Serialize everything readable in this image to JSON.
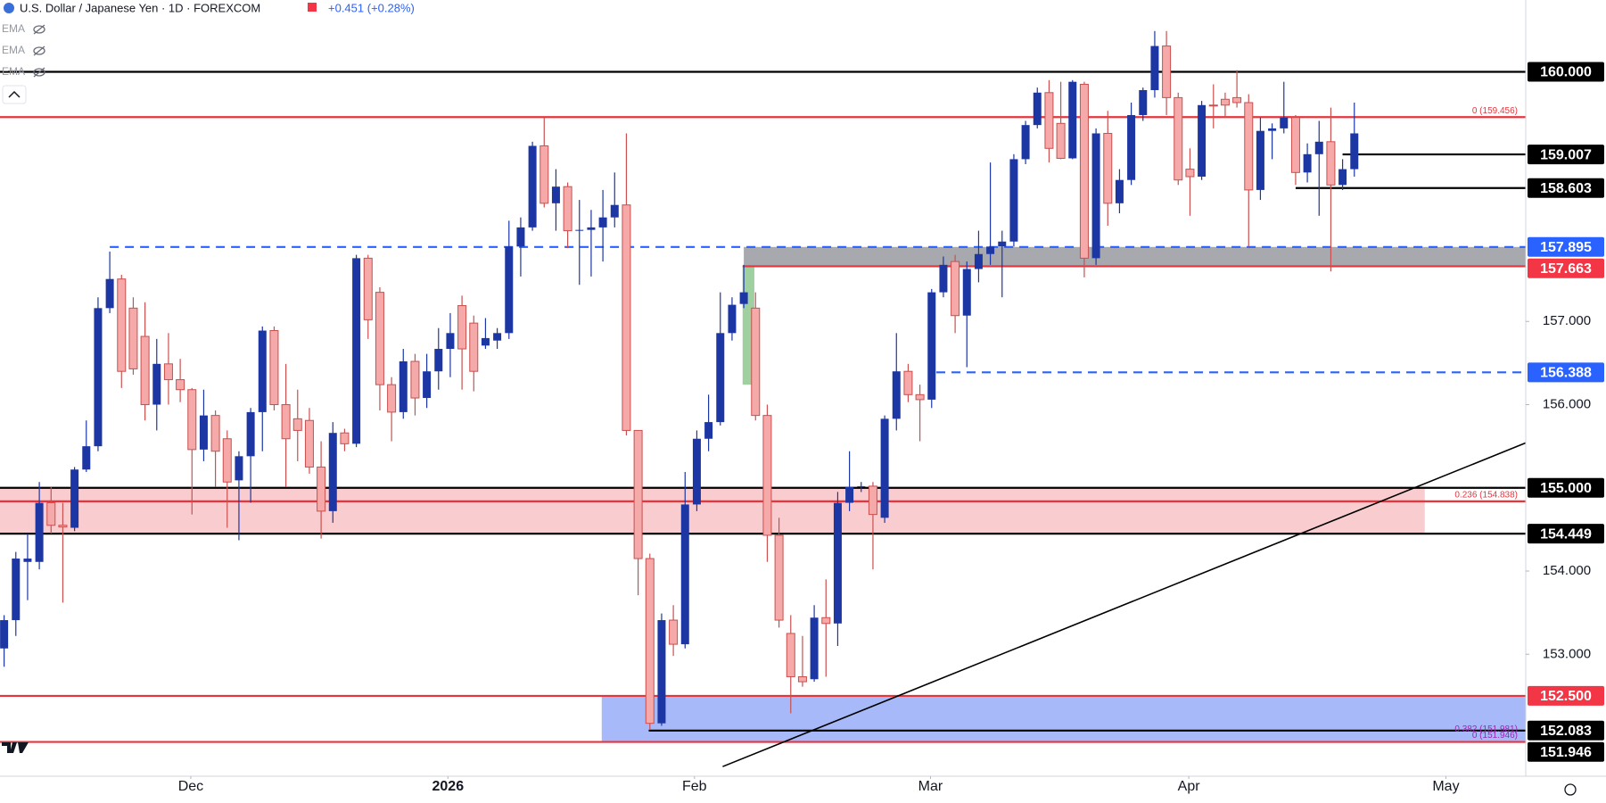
{
  "chart_data": {
    "type": "candlestick",
    "title": "U.S. Dollar / Japanese Yen · 1D · FOREXCOM",
    "change": "+0.451 (+0.28%)",
    "indicators": [
      "EMA",
      "EMA",
      "EMA"
    ],
    "up_color": "#1c36a4",
    "down_color": "#f6a9a9",
    "down_border": "#c9504f",
    "xlim": [
      -0.35,
      129.6
    ],
    "ylim": [
      151.534,
      160.863
    ],
    "xticks": [
      {
        "value": 15.9,
        "label": "Dec"
      },
      {
        "value": 37.8,
        "label": "2026"
      },
      {
        "value": 58.8,
        "label": "Feb"
      },
      {
        "value": 78.9,
        "label": "Mar"
      },
      {
        "value": 100.9,
        "label": "Apr"
      },
      {
        "value": 122.8,
        "label": "May"
      }
    ],
    "yticks": [
      {
        "value": 153,
        "label": "153.000"
      },
      {
        "value": 154,
        "label": "154.000"
      },
      {
        "value": 156,
        "label": "156.000"
      },
      {
        "value": 157,
        "label": "157.000"
      }
    ],
    "open": [
      153.07,
      153.41,
      154.11,
      154.11,
      154.82,
      154.55,
      154.52,
      155.22,
      155.5,
      157.16,
      157.51,
      157.16,
      156.82,
      156.0,
      156.49,
      156.3,
      156.18,
      155.46,
      155.87,
      155.59,
      155.09,
      155.38,
      155.91,
      156.89,
      156.0,
      155.83,
      155.81,
      155.25,
      154.72,
      155.66,
      155.53,
      157.76,
      157.35,
      156.24,
      155.91,
      156.52,
      156.08,
      156.4,
      156.67,
      157.19,
      156.98,
      156.71,
      156.77,
      156.86,
      157.9,
      158.13,
      159.11,
      158.42,
      158.62,
      158.09,
      158.1,
      158.13,
      158.25,
      158.4,
      155.69,
      154.15,
      152.17,
      153.41,
      153.12,
      154.8,
      155.59,
      155.79,
      156.86,
      157.21,
      157.16,
      155.87,
      154.43,
      153.25,
      152.73,
      152.7,
      153.44,
      153.37,
      154.82,
      155.01,
      155.02,
      154.64,
      155.83,
      156.4,
      156.12,
      156.06,
      157.35,
      157.72,
      157.07,
      157.63,
      157.81,
      157.9,
      157.96,
      158.95,
      159.36,
      159.75,
      159.38,
      158.96,
      159.85,
      157.76,
      159.26,
      158.42,
      158.7,
      159.48,
      159.78,
      160.31,
      159.69,
      158.83,
      158.74,
      159.6,
      159.67,
      159.69,
      159.63,
      158.58,
      159.29,
      159.32,
      159.45,
      158.79,
      159.01,
      159.16,
      158.64,
      158.83
    ],
    "high": [
      153.47,
      154.23,
      154.45,
      155.07,
      155.01,
      154.82,
      155.25,
      155.81,
      157.29,
      157.84,
      157.56,
      157.29,
      157.23,
      156.79,
      156.86,
      156.55,
      156.2,
      156.18,
      155.93,
      155.69,
      155.44,
      155.96,
      156.94,
      156.94,
      156.49,
      156.18,
      155.96,
      155.56,
      155.79,
      155.71,
      157.8,
      157.8,
      157.41,
      156.33,
      156.67,
      156.61,
      156.61,
      156.92,
      157.1,
      157.31,
      157.07,
      157.04,
      156.92,
      158.21,
      158.25,
      159.16,
      159.45,
      158.83,
      158.67,
      158.46,
      158.34,
      158.58,
      158.79,
      159.26,
      155.69,
      154.21,
      153.49,
      153.59,
      155.19,
      155.69,
      156.12,
      157.35,
      157.29,
      157.68,
      157.35,
      156.0,
      154.64,
      153.47,
      153.22,
      153.59,
      153.9,
      154.95,
      155.44,
      155.07,
      155.07,
      155.87,
      156.86,
      156.49,
      156.24,
      157.39,
      157.78,
      157.8,
      157.72,
      158.09,
      158.91,
      158.09,
      159.01,
      159.41,
      159.81,
      159.9,
      159.88,
      159.9,
      159.88,
      159.32,
      159.53,
      158.83,
      159.63,
      159.81,
      160.49,
      160.49,
      159.75,
      159.08,
      159.65,
      159.85,
      159.75,
      160.02,
      159.73,
      159.45,
      159.38,
      159.88,
      159.48,
      159.14,
      159.41,
      159.57,
      158.95,
      159.63
    ],
    "low": [
      152.85,
      153.22,
      153.65,
      154.02,
      154.45,
      153.62,
      154.48,
      155.19,
      155.44,
      157.1,
      156.2,
      156.36,
      155.81,
      155.69,
      156.0,
      156.03,
      154.68,
      155.32,
      155.01,
      154.52,
      154.37,
      154.82,
      155.44,
      155.93,
      155.01,
      155.32,
      155.17,
      154.39,
      154.58,
      155.44,
      155.49,
      156.79,
      155.93,
      155.56,
      155.83,
      155.87,
      155.96,
      156.18,
      156.33,
      156.18,
      156.16,
      156.67,
      156.67,
      156.79,
      157.54,
      158.09,
      158.37,
      158.09,
      157.88,
      157.44,
      157.54,
      157.72,
      158.13,
      155.63,
      153.71,
      152.09,
      152.14,
      152.98,
      153.07,
      154.72,
      155.44,
      155.75,
      156.77,
      157.16,
      155.81,
      154.11,
      153.32,
      152.29,
      152.61,
      152.67,
      152.73,
      153.1,
      154.72,
      154.95,
      154.02,
      154.58,
      155.69,
      156.03,
      155.56,
      155.96,
      157.29,
      156.86,
      156.45,
      157.47,
      157.68,
      157.29,
      157.9,
      158.89,
      159.32,
      158.91,
      158.95,
      158.95,
      157.53,
      157.68,
      158.15,
      158.3,
      158.64,
      159.41,
      159.69,
      159.48,
      158.64,
      158.27,
      158.7,
      159.32,
      159.45,
      159.57,
      157.9,
      158.46,
      158.95,
      159.26,
      158.64,
      158.67,
      158.27,
      157.6,
      158.58,
      158.74
    ],
    "close": [
      153.41,
      154.15,
      154.15,
      154.82,
      154.55,
      154.53,
      155.22,
      155.5,
      157.16,
      157.51,
      156.4,
      156.43,
      156.0,
      156.49,
      156.3,
      156.18,
      155.46,
      155.87,
      155.44,
      155.07,
      155.38,
      155.91,
      156.89,
      156.0,
      155.59,
      155.69,
      155.25,
      154.72,
      155.66,
      155.53,
      157.76,
      157.02,
      156.24,
      155.91,
      156.52,
      156.08,
      156.4,
      156.67,
      156.86,
      156.67,
      156.4,
      156.8,
      156.86,
      157.9,
      158.13,
      159.11,
      158.42,
      158.62,
      158.09,
      158.1,
      158.13,
      158.25,
      158.4,
      155.69,
      154.15,
      152.17,
      153.41,
      153.12,
      154.8,
      155.59,
      155.79,
      156.86,
      157.2,
      157.35,
      155.87,
      154.43,
      153.41,
      152.73,
      152.67,
      153.44,
      153.37,
      154.82,
      155.01,
      155.02,
      154.68,
      155.83,
      156.4,
      156.12,
      156.06,
      157.35,
      157.68,
      157.07,
      157.63,
      157.81,
      157.9,
      157.96,
      158.95,
      159.36,
      159.75,
      159.08,
      158.96,
      159.88,
      157.76,
      159.26,
      158.42,
      158.7,
      159.48,
      159.78,
      160.31,
      159.69,
      158.7,
      158.74,
      159.6,
      159.59,
      159.6,
      159.63,
      158.58,
      159.29,
      159.32,
      159.45,
      158.79,
      159.01,
      159.16,
      158.64,
      158.83,
      159.26
    ],
    "zones": [
      {
        "low": 154.449,
        "high": 155.0,
        "start": -0.35,
        "end": 121.0,
        "color": "rgba(235,90,100,0.3)"
      },
      {
        "low": 151.946,
        "high": 152.5,
        "start": 50.9,
        "color": "rgba(60,100,240,0.45)"
      },
      {
        "low": 157.663,
        "high": 157.895,
        "start": 63.0,
        "color": "rgba(110,112,120,0.6)"
      },
      {
        "low": 156.24,
        "high": 157.663,
        "start": 62.9,
        "end": 63.9,
        "color": "rgba(80,170,80,0.55)"
      }
    ],
    "levels": [
      {
        "value": 160.0,
        "label": "160.000",
        "color": "#000000",
        "label_color": "#000000"
      },
      {
        "value": 159.456,
        "color": "#e8353d"
      },
      {
        "value": 159.007,
        "label": "159.007",
        "color": "#000000",
        "label_color": "#000000",
        "start": 114.0
      },
      {
        "value": 158.603,
        "label": "158.603",
        "color": "#000000",
        "label_color": "#000000",
        "start": 110.0
      },
      {
        "value": 157.895,
        "label": "157.895",
        "color": "#2962ff",
        "label_color": "#2962ff",
        "dashed": true,
        "start": 9.0
      },
      {
        "value": 157.663,
        "label": "157.663",
        "color": "#e8353d",
        "label_color": "#f23645",
        "start": 62.9
      },
      {
        "value": 156.388,
        "label": "156.388",
        "color": "#2962ff",
        "label_color": "#2962ff",
        "dashed": true,
        "start": 79.4
      },
      {
        "value": 155.0,
        "label": "155.000",
        "color": "#000000",
        "label_color": "#000000"
      },
      {
        "value": 154.838,
        "color": "#e8353d"
      },
      {
        "value": 154.449,
        "label": "154.449",
        "color": "#000000",
        "label_color": "#000000"
      },
      {
        "value": 152.5,
        "label": "152.500",
        "color": "#e8353d",
        "label_color": "#f23645"
      },
      {
        "value": 152.083,
        "label": "152.083",
        "color": "#000000",
        "label_color": "#000000",
        "start": 54.9
      },
      {
        "value": 151.946,
        "label": "151.946",
        "color": "#e8353d",
        "label_color": "#000000"
      }
    ],
    "annotations": [
      {
        "text": "0 (159.456)",
        "value": 159.456,
        "color": "#e8353d"
      },
      {
        "text": "0.236 (154.838)",
        "value": 154.838,
        "color": "#e8353d"
      },
      {
        "text": "0.382 (151.981)",
        "value": 151.981,
        "color": "#9c27b0"
      },
      {
        "text": "0 (151.946)",
        "value": 151.946,
        "color": "#9c27b0"
      }
    ],
    "trendline": {
      "from": [
        61.2,
        151.65
      ],
      "to": [
        129.6,
        155.54
      ],
      "color": "#000000"
    }
  }
}
